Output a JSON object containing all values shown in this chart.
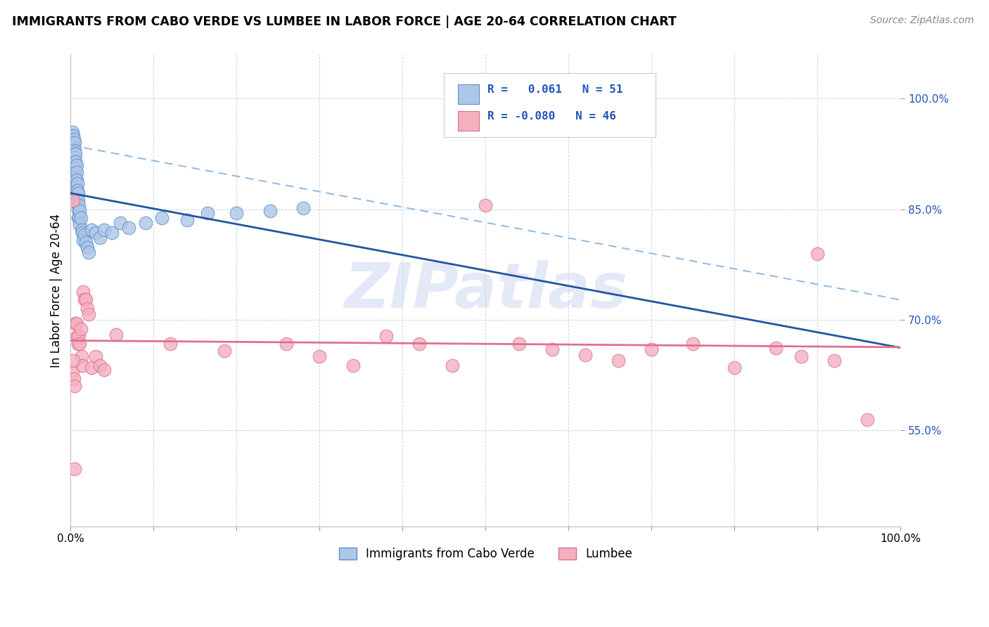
{
  "title": "IMMIGRANTS FROM CABO VERDE VS LUMBEE IN LABOR FORCE | AGE 20-64 CORRELATION CHART",
  "source": "Source: ZipAtlas.com",
  "ylabel": "In Labor Force | Age 20-64",
  "xlim": [
    0,
    1.0
  ],
  "ylim": [
    0.42,
    1.06
  ],
  "ytick_vals": [
    0.55,
    0.7,
    0.85,
    1.0
  ],
  "ytick_labels": [
    "55.0%",
    "70.0%",
    "85.0%",
    "100.0%"
  ],
  "xtick_vals": [
    0.0,
    0.1,
    0.2,
    0.3,
    0.4,
    0.5,
    0.6,
    0.7,
    0.8,
    0.9,
    1.0
  ],
  "xtick_labels": [
    "0.0%",
    "",
    "",
    "",
    "",
    "",
    "",
    "",
    "",
    "",
    "100.0%"
  ],
  "cabo_verde_R": 0.061,
  "cabo_verde_N": 51,
  "lumbee_R": -0.08,
  "lumbee_N": 46,
  "cabo_verde_scatter_color": "#aec6e8",
  "cabo_verde_edge_color": "#6090c8",
  "lumbee_scatter_color": "#f5b0c0",
  "lumbee_edge_color": "#d87090",
  "cabo_verde_line_color": "#2255a0",
  "cabo_verde_dash_color": "#90b8e5",
  "lumbee_line_color": "#e07090",
  "watermark_color": "#ccd8f0",
  "watermark": "ZIPatlas",
  "cabo_verde_x": [
    0.002,
    0.003,
    0.003,
    0.004,
    0.004,
    0.005,
    0.005,
    0.005,
    0.005,
    0.006,
    0.006,
    0.006,
    0.006,
    0.007,
    0.007,
    0.007,
    0.007,
    0.007,
    0.008,
    0.008,
    0.008,
    0.009,
    0.009,
    0.009,
    0.009,
    0.01,
    0.01,
    0.011,
    0.011,
    0.012,
    0.013,
    0.014,
    0.015,
    0.017,
    0.018,
    0.02,
    0.022,
    0.025,
    0.03,
    0.035,
    0.04,
    0.05,
    0.06,
    0.07,
    0.09,
    0.11,
    0.14,
    0.165,
    0.2,
    0.24,
    0.28
  ],
  "cabo_verde_y": [
    0.955,
    0.95,
    0.94,
    0.945,
    0.935,
    0.94,
    0.93,
    0.92,
    0.91,
    0.925,
    0.915,
    0.905,
    0.895,
    0.91,
    0.9,
    0.89,
    0.88,
    0.87,
    0.885,
    0.875,
    0.862,
    0.872,
    0.862,
    0.85,
    0.838,
    0.855,
    0.84,
    0.848,
    0.83,
    0.838,
    0.822,
    0.818,
    0.808,
    0.815,
    0.805,
    0.798,
    0.792,
    0.822,
    0.818,
    0.812,
    0.822,
    0.818,
    0.832,
    0.825,
    0.832,
    0.838,
    0.835,
    0.845,
    0.845,
    0.848,
    0.852
  ],
  "lumbee_x": [
    0.002,
    0.003,
    0.004,
    0.005,
    0.006,
    0.007,
    0.008,
    0.009,
    0.01,
    0.011,
    0.012,
    0.013,
    0.014,
    0.015,
    0.017,
    0.018,
    0.02,
    0.022,
    0.025,
    0.03,
    0.035,
    0.04,
    0.055,
    0.12,
    0.185,
    0.26,
    0.3,
    0.34,
    0.38,
    0.42,
    0.46,
    0.5,
    0.54,
    0.58,
    0.62,
    0.66,
    0.7,
    0.75,
    0.8,
    0.85,
    0.88,
    0.9,
    0.92,
    0.96,
    0.003,
    0.005
  ],
  "lumbee_y": [
    0.63,
    0.862,
    0.62,
    0.61,
    0.695,
    0.695,
    0.678,
    0.668,
    0.678,
    0.668,
    0.688,
    0.65,
    0.638,
    0.738,
    0.728,
    0.728,
    0.715,
    0.708,
    0.635,
    0.65,
    0.638,
    0.632,
    0.68,
    0.668,
    0.658,
    0.668,
    0.65,
    0.638,
    0.678,
    0.668,
    0.638,
    0.855,
    0.668,
    0.66,
    0.652,
    0.645,
    0.66,
    0.668,
    0.635,
    0.662,
    0.65,
    0.79,
    0.645,
    0.565,
    0.645,
    0.498
  ]
}
